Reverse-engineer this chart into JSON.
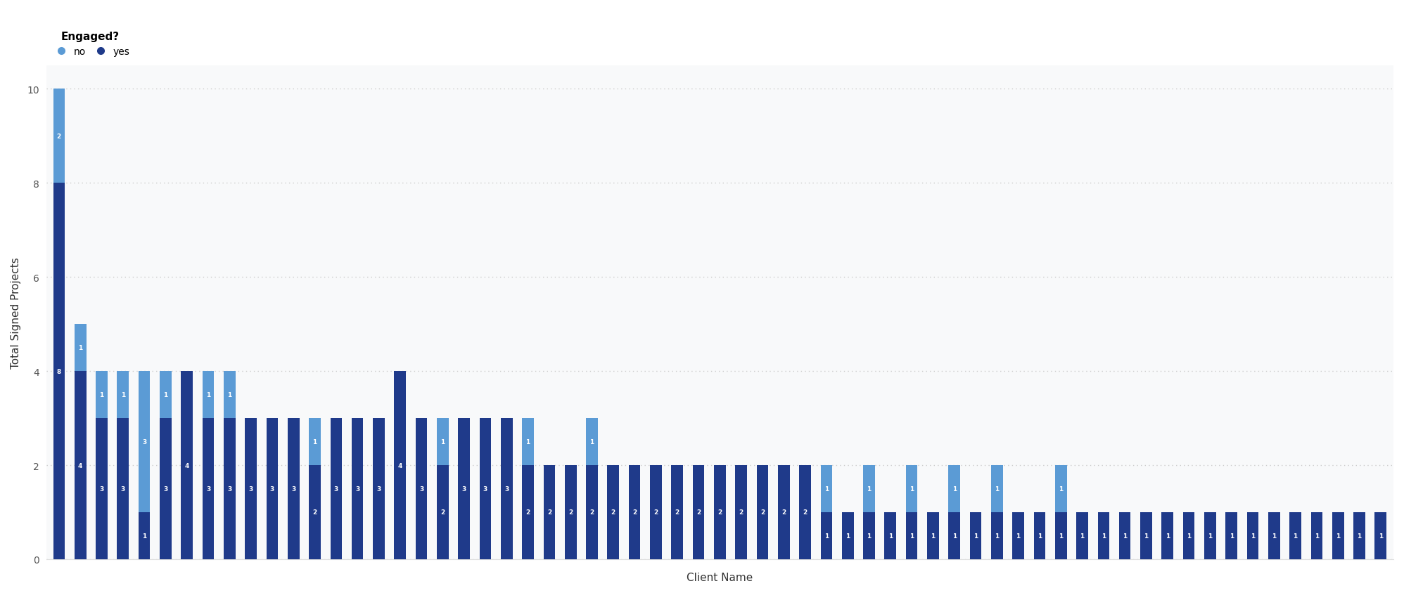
{
  "yes_values": [
    8,
    4,
    3,
    3,
    1,
    3,
    4,
    3,
    3,
    3,
    3,
    3,
    2,
    3,
    3,
    3,
    4,
    3,
    2,
    3,
    3,
    3,
    2,
    2,
    2,
    2,
    2,
    2,
    2,
    2,
    2,
    2,
    2,
    2,
    2,
    2,
    1,
    1,
    1,
    1,
    1,
    1,
    1,
    1,
    1,
    1,
    1,
    1,
    1,
    1,
    1,
    1,
    1,
    1,
    1,
    1,
    1,
    1,
    1,
    1,
    1,
    1,
    1
  ],
  "no_values": [
    2,
    1,
    1,
    1,
    3,
    1,
    0,
    1,
    1,
    0,
    0,
    0,
    1,
    0,
    0,
    0,
    0,
    0,
    1,
    0,
    0,
    0,
    1,
    0,
    0,
    1,
    0,
    0,
    0,
    0,
    0,
    0,
    0,
    0,
    0,
    0,
    1,
    0,
    1,
    0,
    1,
    0,
    1,
    0,
    1,
    0,
    0,
    1,
    0,
    0,
    0,
    0,
    0,
    0,
    0,
    0,
    0,
    0,
    0,
    0,
    0,
    0,
    0
  ],
  "color_no": "#5B9BD5",
  "color_yes": "#1F3A8A",
  "xlabel": "Client Name",
  "ylabel": "Total Signed Projects",
  "ylim_max": 10.5,
  "yticks": [
    0,
    2,
    4,
    6,
    8,
    10
  ],
  "legend_title": "Engaged?",
  "legend_no": "no",
  "legend_yes": "yes",
  "background_color": "#FFFFFF",
  "plot_bg_color": "#F8F9FA",
  "grid_color": "#CCCCCC",
  "bar_width": 0.55
}
